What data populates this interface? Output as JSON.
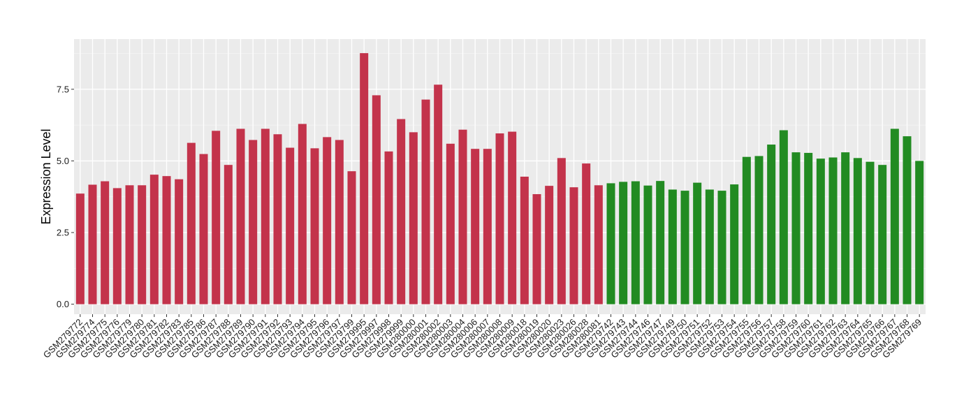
{
  "chart_data": {
    "type": "bar",
    "title": "",
    "xlabel": "",
    "ylabel": "Expression Level",
    "ylim": [
      -0.35,
      9.25
    ],
    "yticks": [
      0.0,
      2.5,
      5.0,
      7.5
    ],
    "ytick_labels": [
      "0.0",
      "2.5",
      "5.0",
      "7.5"
    ],
    "grid": true,
    "legend": "none",
    "colors": {
      "group_red": "#C3334B",
      "group_green": "#228B22",
      "panel_bg": "#EBEBEB",
      "grid": "#FFFFFF"
    },
    "categories": [
      "GSM279772",
      "GSM279774",
      "GSM279775",
      "GSM279776",
      "GSM279779",
      "GSM279780",
      "GSM279781",
      "GSM279782",
      "GSM279783",
      "GSM279785",
      "GSM279786",
      "GSM279787",
      "GSM279788",
      "GSM279789",
      "GSM279790",
      "GSM279791",
      "GSM279792",
      "GSM279793",
      "GSM279794",
      "GSM279795",
      "GSM279796",
      "GSM279797",
      "GSM279799",
      "GSM279995",
      "GSM279997",
      "GSM279998",
      "GSM279999",
      "GSM280000",
      "GSM280001",
      "GSM280002",
      "GSM280003",
      "GSM280004",
      "GSM280006",
      "GSM280007",
      "GSM280008",
      "GSM280009",
      "GSM280018",
      "GSM280019",
      "GSM280020",
      "GSM280023",
      "GSM280026",
      "GSM280028",
      "GSM280081",
      "GSM279742",
      "GSM279743",
      "GSM279744",
      "GSM279746",
      "GSM279747",
      "GSM279749",
      "GSM279750",
      "GSM279751",
      "GSM279752",
      "GSM279753",
      "GSM279754",
      "GSM279755",
      "GSM279756",
      "GSM279757",
      "GSM279758",
      "GSM279759",
      "GSM279760",
      "GSM279761",
      "GSM279762",
      "GSM279763",
      "GSM279764",
      "GSM279765",
      "GSM279766",
      "GSM279767",
      "GSM279768",
      "GSM279769"
    ],
    "values": [
      3.86,
      4.17,
      4.29,
      4.05,
      4.15,
      4.15,
      4.52,
      4.47,
      4.36,
      5.63,
      5.24,
      6.05,
      4.86,
      6.12,
      5.73,
      6.12,
      5.93,
      5.46,
      6.29,
      5.44,
      5.83,
      5.73,
      4.64,
      8.76,
      7.29,
      5.33,
      6.46,
      6.0,
      7.14,
      7.66,
      5.6,
      6.09,
      5.42,
      5.42,
      5.96,
      6.02,
      4.45,
      3.84,
      4.13,
      5.1,
      4.08,
      4.91,
      4.15,
      4.22,
      4.27,
      4.29,
      4.14,
      4.3,
      4.0,
      3.96,
      4.24,
      4.0,
      3.96,
      4.18,
      5.14,
      5.17,
      5.57,
      6.07,
      5.3,
      5.28,
      5.08,
      5.12,
      5.3,
      5.1,
      4.97,
      4.86,
      6.12,
      5.86,
      5.0
    ],
    "bar_colors": [
      "red",
      "red",
      "red",
      "red",
      "red",
      "red",
      "red",
      "red",
      "red",
      "red",
      "red",
      "red",
      "red",
      "red",
      "red",
      "red",
      "red",
      "red",
      "red",
      "red",
      "red",
      "red",
      "red",
      "red",
      "red",
      "red",
      "red",
      "red",
      "red",
      "red",
      "red",
      "red",
      "red",
      "red",
      "red",
      "red",
      "red",
      "red",
      "red",
      "red",
      "red",
      "red",
      "red",
      "green",
      "green",
      "green",
      "green",
      "green",
      "green",
      "green",
      "green",
      "green",
      "green",
      "green",
      "green",
      "green",
      "green",
      "green",
      "green",
      "green",
      "green",
      "green",
      "green",
      "green",
      "green",
      "green",
      "green",
      "green",
      "green"
    ]
  }
}
